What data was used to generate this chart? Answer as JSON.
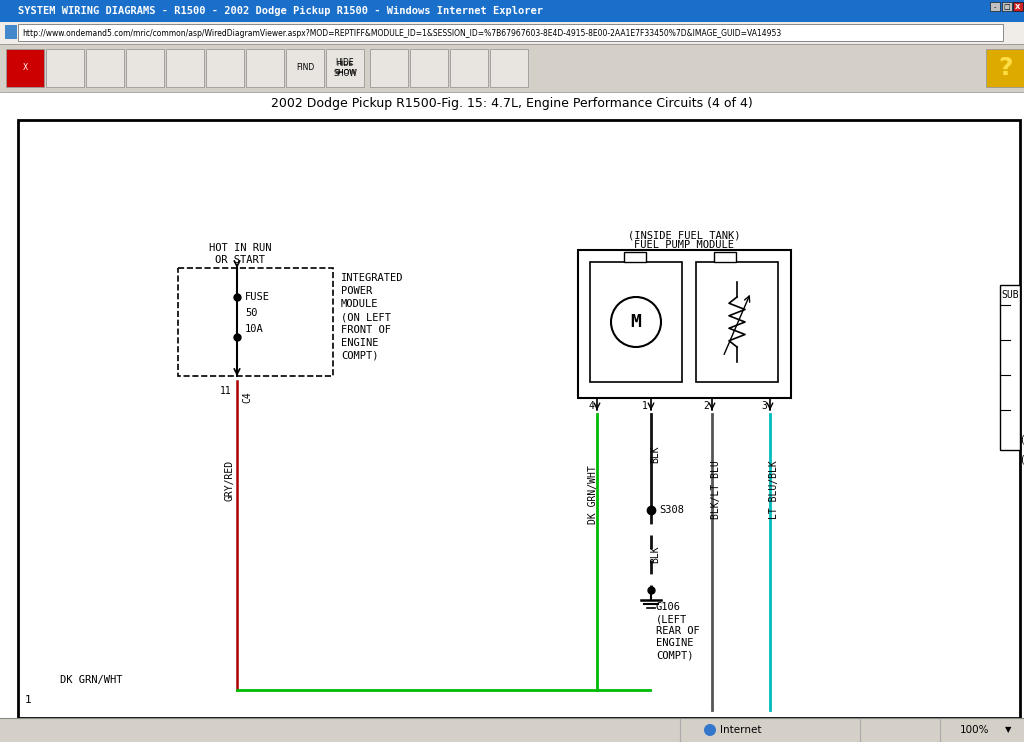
{
  "title_bar": "SYSTEM WIRING DIAGRAMS - R1500 - 2002 Dodge Pickup R1500 - Windows Internet Explorer",
  "url": "http://www.ondemand5.com/mric/common/asp/WiredDiagramViewer.aspx?MOD=REPTIFF&MODULE_ID=1&SESSION_ID=%7B67967603-8E4D-4915-8E00-2AA1E7F33450%7D&IMAGE_GUID=VA14953",
  "diagram_title": "2002 Dodge Pickup R1500-Fig. 15: 4.7L, Engine Performance Circuits (4 of 4)",
  "titlebar_bg": "#1a6fca",
  "titlebar_text": "white",
  "addrbar_bg": "#f0ece8",
  "toolbar_bg": "#d4d0c8",
  "diagram_bg": "white",
  "outer_bg": "#c8c8c8",
  "wire_green": "#00bb00",
  "wire_red": "#aa0000",
  "wire_black": "#111111",
  "wire_cyan": "#00bbbb",
  "wire_dkgray": "#555555",
  "statusbar_bg": "#d4d0c8"
}
